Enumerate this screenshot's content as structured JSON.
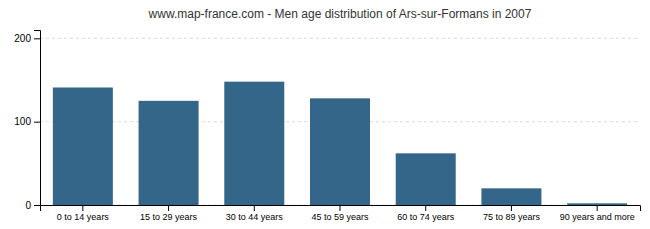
{
  "chart_data": {
    "type": "bar",
    "title": "www.map-france.com - Men age distribution of Ars-sur-Formans in 2007",
    "categories": [
      "0 to 14 years",
      "15 to 29 years",
      "30 to 44 years",
      "45 to 59 years",
      "60 to 74 years",
      "75 to 89 years",
      "90 years and more"
    ],
    "values": [
      141,
      125,
      148,
      128,
      62,
      20,
      2
    ],
    "color": "#336688",
    "ylim": [
      0,
      210
    ],
    "yticks": [
      0,
      100,
      200
    ],
    "grid": true
  }
}
